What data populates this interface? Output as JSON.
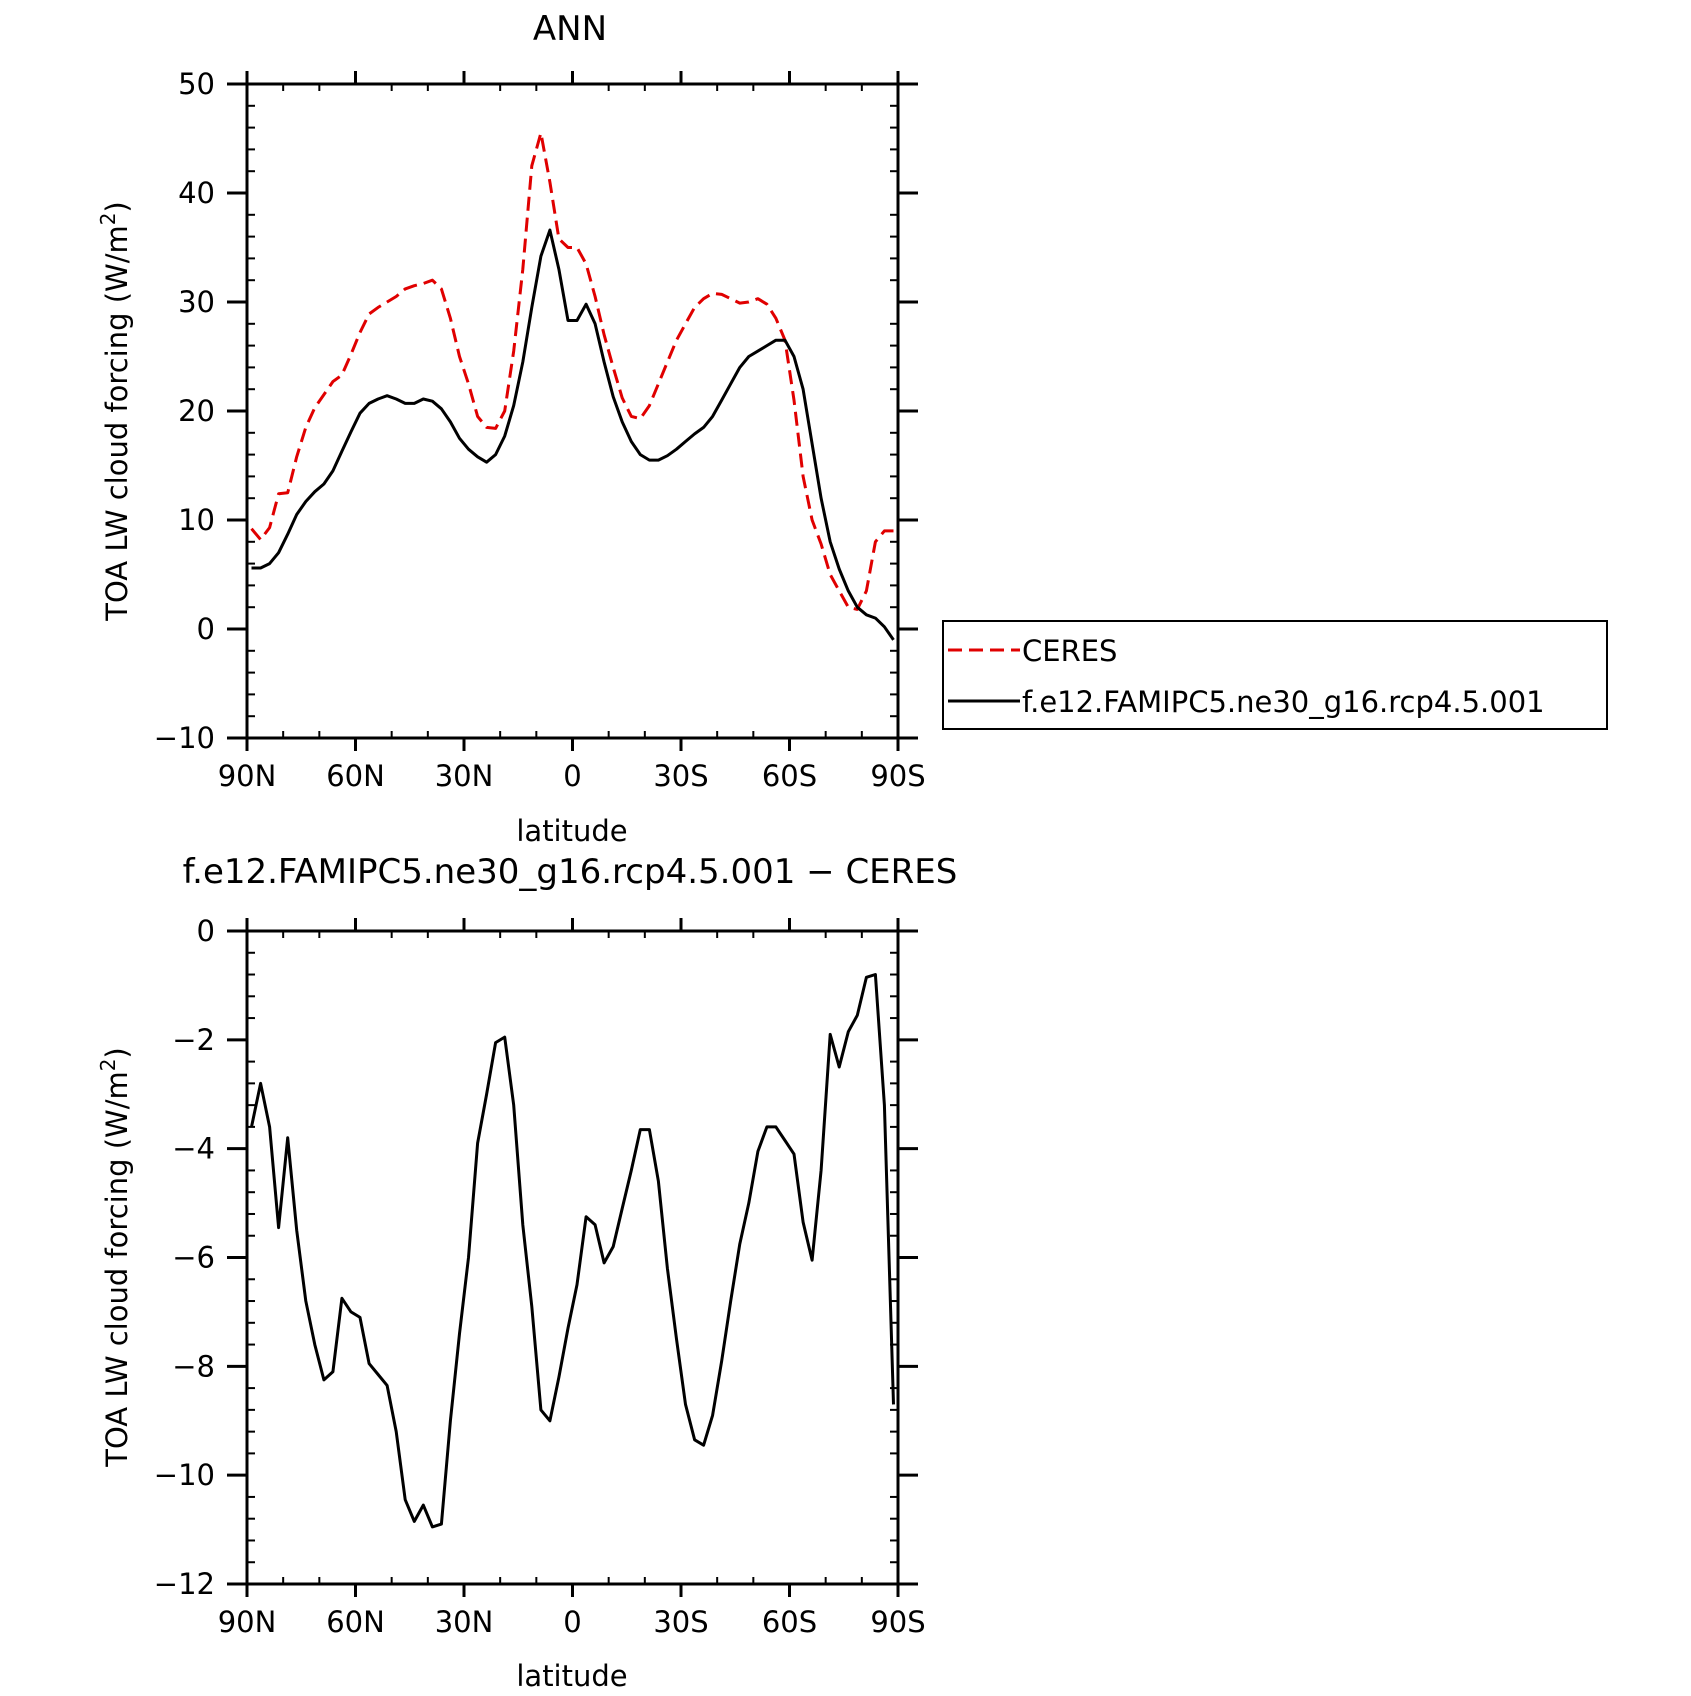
{
  "chart_data": [
    {
      "type": "line",
      "title": "ANN",
      "xlabel": "latitude",
      "ylabel": "TOA LW cloud forcing (W/m²)",
      "ylabel_parts": {
        "prefix": "TOA LW cloud forcing (W/m",
        "sup": "2",
        "suffix": ")"
      },
      "xlim": [
        90,
        -90
      ],
      "ylim": [
        -10,
        50
      ],
      "x_ticks": [
        90,
        60,
        30,
        0,
        -30,
        -60,
        -90
      ],
      "x_tick_labels": [
        "90N",
        "60N",
        "30N",
        "0",
        "30S",
        "60S",
        "90S"
      ],
      "y_ticks": [
        -10,
        0,
        10,
        20,
        30,
        40,
        50
      ],
      "y_tick_labels": [
        "−10",
        "0",
        "10",
        "20",
        "30",
        "40",
        "50"
      ],
      "grid": false,
      "legend_position": "right",
      "series": [
        {
          "name": "CERES",
          "color": "#e00000",
          "dash": "dashed",
          "x": [
            88.75,
            86.25,
            83.75,
            81.25,
            78.75,
            76.25,
            73.75,
            71.25,
            68.75,
            66.25,
            63.75,
            61.25,
            58.75,
            56.25,
            53.75,
            51.25,
            48.75,
            46.25,
            43.75,
            41.25,
            38.75,
            36.25,
            33.75,
            31.25,
            28.75,
            26.25,
            23.75,
            21.25,
            18.75,
            16.25,
            13.75,
            11.25,
            8.75,
            6.25,
            3.75,
            1.25,
            -1.25,
            -3.75,
            -6.25,
            -8.75,
            -11.25,
            -13.75,
            -16.25,
            -18.75,
            -21.25,
            -23.75,
            -26.25,
            -28.75,
            -31.25,
            -33.75,
            -36.25,
            -38.75,
            -41.25,
            -43.75,
            -46.25,
            -48.75,
            -51.25,
            -53.75,
            -56.25,
            -58.75,
            -61.25,
            -63.75,
            -66.25,
            -68.75,
            -71.25,
            -73.75,
            -76.25,
            -78.75,
            -81.25,
            -83.75,
            -86.25,
            -88.75
          ],
          "values": [
            9.2,
            8.2,
            9.3,
            12.4,
            12.5,
            15.8,
            18.5,
            20.3,
            21.5,
            22.7,
            23.3,
            25.2,
            27.2,
            28.9,
            29.5,
            30.0,
            30.5,
            31.2,
            31.5,
            31.7,
            32.0,
            31.2,
            28.5,
            25.0,
            22.5,
            19.5,
            18.5,
            18.4,
            20.0,
            25.5,
            33.0,
            42.5,
            45.5,
            41.0,
            35.8,
            35.0,
            35.0,
            33.5,
            30.5,
            27.0,
            24.0,
            21.2,
            19.5,
            19.3,
            20.5,
            22.5,
            24.5,
            26.5,
            28.0,
            29.5,
            30.3,
            30.8,
            30.7,
            30.3,
            29.9,
            30.0,
            30.3,
            29.8,
            28.5,
            26.5,
            21.0,
            14.0,
            10.0,
            7.8,
            5.0,
            3.5,
            2.0,
            1.8,
            3.5,
            8.0,
            9.0,
            9.0
          ]
        },
        {
          "name": "f.e12.FAMIPC5.ne30_g16.rcp4.5.001",
          "color": "#000000",
          "dash": "solid",
          "x": [
            88.75,
            86.25,
            83.75,
            81.25,
            78.75,
            76.25,
            73.75,
            71.25,
            68.75,
            66.25,
            63.75,
            61.25,
            58.75,
            56.25,
            53.75,
            51.25,
            48.75,
            46.25,
            43.75,
            41.25,
            38.75,
            36.25,
            33.75,
            31.25,
            28.75,
            26.25,
            23.75,
            21.25,
            18.75,
            16.25,
            13.75,
            11.25,
            8.75,
            6.25,
            3.75,
            1.25,
            -1.25,
            -3.75,
            -6.25,
            -8.75,
            -11.25,
            -13.75,
            -16.25,
            -18.75,
            -21.25,
            -23.75,
            -26.25,
            -28.75,
            -31.25,
            -33.75,
            -36.25,
            -38.75,
            -41.25,
            -43.75,
            -46.25,
            -48.75,
            -51.25,
            -53.75,
            -56.25,
            -58.75,
            -61.25,
            -63.75,
            -66.25,
            -68.75,
            -71.25,
            -73.75,
            -76.25,
            -78.75,
            -81.25,
            -83.75,
            -86.25,
            -88.75
          ],
          "values": [
            5.6,
            5.6,
            6.0,
            7.0,
            8.7,
            10.5,
            11.7,
            12.6,
            13.3,
            14.5,
            16.3,
            18.1,
            19.8,
            20.7,
            21.1,
            21.4,
            21.1,
            20.7,
            20.7,
            21.1,
            20.9,
            20.2,
            19.0,
            17.5,
            16.5,
            15.8,
            15.3,
            16.0,
            17.7,
            20.5,
            24.5,
            29.5,
            34.2,
            36.6,
            33.0,
            28.3,
            28.3,
            29.8,
            28.0,
            24.5,
            21.3,
            19.0,
            17.2,
            16.0,
            15.5,
            15.5,
            15.9,
            16.5,
            17.2,
            17.9,
            18.5,
            19.5,
            21.0,
            22.5,
            24.0,
            25.0,
            25.5,
            26.0,
            26.5,
            26.5,
            25.0,
            22.0,
            17.0,
            12.0,
            8.0,
            5.5,
            3.5,
            2.0,
            1.3,
            1.0,
            0.2,
            -1.0
          ]
        }
      ]
    },
    {
      "type": "line",
      "title": "f.e12.FAMIPC5.ne30_g16.rcp4.5.001 − CERES",
      "xlabel": "latitude",
      "ylabel": "TOA LW cloud forcing (W/m²)",
      "ylabel_parts": {
        "prefix": "TOA LW cloud forcing (W/m",
        "sup": "2",
        "suffix": ")"
      },
      "xlim": [
        90,
        -90
      ],
      "ylim": [
        -12,
        0
      ],
      "x_ticks": [
        90,
        60,
        30,
        0,
        -30,
        -60,
        -90
      ],
      "x_tick_labels": [
        "90N",
        "60N",
        "30N",
        "0",
        "30S",
        "60S",
        "90S"
      ],
      "y_ticks": [
        -12,
        -10,
        -8,
        -6,
        -4,
        -2,
        0
      ],
      "y_tick_labels": [
        "−12",
        "−10",
        "−8",
        "−6",
        "−4",
        "−2",
        "0"
      ],
      "grid": false,
      "series": [
        {
          "color": "#000000",
          "dash": "solid",
          "x": [
            88.75,
            86.25,
            83.75,
            81.25,
            78.75,
            76.25,
            73.75,
            71.25,
            68.75,
            66.25,
            63.75,
            61.25,
            58.75,
            56.25,
            53.75,
            51.25,
            48.75,
            46.25,
            43.75,
            41.25,
            38.75,
            36.25,
            33.75,
            31.25,
            28.75,
            26.25,
            23.75,
            21.25,
            18.75,
            16.25,
            13.75,
            11.25,
            8.75,
            6.25,
            3.75,
            1.25,
            -1.25,
            -3.75,
            -6.25,
            -8.75,
            -11.25,
            -13.75,
            -16.25,
            -18.75,
            -21.25,
            -23.75,
            -26.25,
            -28.75,
            -31.25,
            -33.75,
            -36.25,
            -38.75,
            -41.25,
            -43.75,
            -46.25,
            -48.75,
            -51.25,
            -53.75,
            -56.25,
            -58.75,
            -61.25,
            -63.75,
            -66.25,
            -68.75,
            -71.25,
            -73.75,
            -76.25,
            -78.75,
            -81.25,
            -83.75,
            -86.25,
            -88.75
          ],
          "values": [
            -3.6,
            -2.8,
            -3.6,
            -5.45,
            -3.8,
            -5.5,
            -6.8,
            -7.6,
            -8.25,
            -8.1,
            -6.75,
            -7.0,
            -7.1,
            -7.95,
            -8.15,
            -8.35,
            -9.2,
            -10.45,
            -10.85,
            -10.55,
            -10.95,
            -10.9,
            -9.0,
            -7.4,
            -6.0,
            -3.9,
            -3.0,
            -2.05,
            -1.95,
            -3.2,
            -5.4,
            -6.9,
            -8.8,
            -9.0,
            -8.2,
            -7.3,
            -6.5,
            -5.25,
            -5.4,
            -6.1,
            -5.8,
            -5.1,
            -4.4,
            -3.65,
            -3.65,
            -4.6,
            -6.2,
            -7.5,
            -8.7,
            -9.35,
            -9.45,
            -8.9,
            -7.9,
            -6.8,
            -5.75,
            -5.0,
            -4.05,
            -3.6,
            -3.6,
            -3.85,
            -4.1,
            -5.35,
            -6.05,
            -4.4,
            -1.9,
            -2.5,
            -1.85,
            -1.55,
            -0.85,
            -0.8,
            -3.2,
            -8.7
          ]
        }
      ]
    }
  ]
}
